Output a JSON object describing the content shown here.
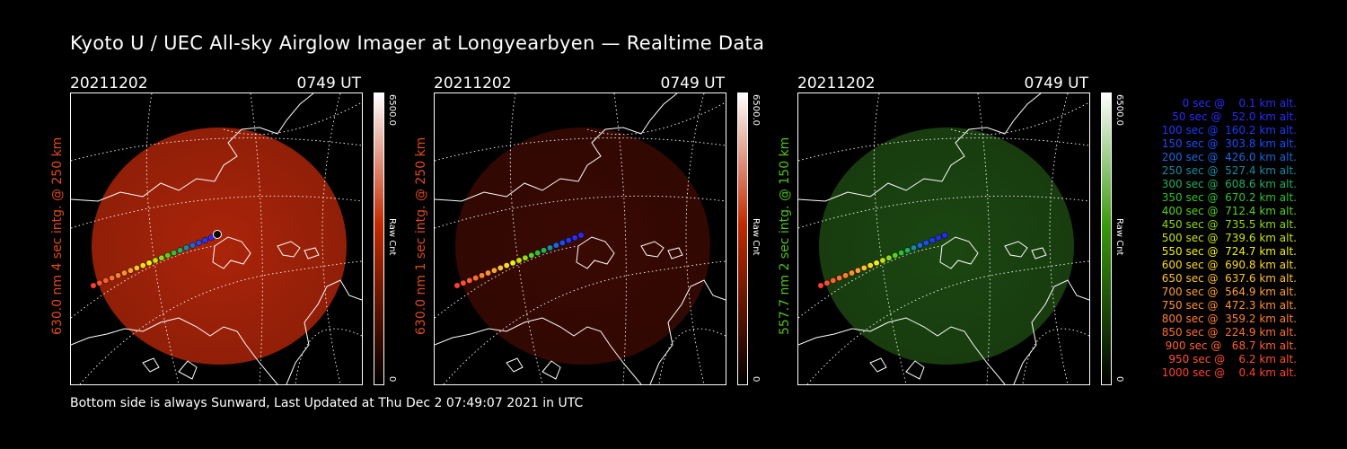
{
  "page": {
    "title": "Kyoto U / UEC All-sky Airglow Imager at Longyearbyen — Realtime Data",
    "footer": "Bottom side is always Sunward, Last Updated at Thu Dec  2 07:49:07 2021 in UTC"
  },
  "panels": [
    {
      "date": "20211202",
      "time": "0749 UT",
      "ylabel": "630.0 nm 4 sec intg. @ 250 km",
      "label_color": "#e04a1a",
      "glow": "#b3260a",
      "glow_alpha": 0.95,
      "cbar_top": "6500.0",
      "cbar_bottom": "0",
      "cbar_label": "Raw Cnt",
      "cbar_color": "#c22a00"
    },
    {
      "date": "20211202",
      "time": "0749 UT",
      "ylabel": "630.0 nm 1 sec intg. @ 250 km",
      "label_color": "#e04a1a",
      "glow": "#3d0a03",
      "glow_alpha": 0.95,
      "cbar_top": "6500.0",
      "cbar_bottom": "0",
      "cbar_label": "Raw Cnt",
      "cbar_color": "#c22a00"
    },
    {
      "date": "20211202",
      "time": "0749 UT",
      "ylabel": "557.7 nm 2 sec intg. @ 150 km",
      "label_color": "#4fc21a",
      "glow": "#1d4a12",
      "glow_alpha": 0.95,
      "cbar_top": "6500.0",
      "cbar_bottom": "0",
      "cbar_label": "Raw Cnt",
      "cbar_color": "#3a9a10"
    }
  ],
  "trajectory": {
    "entries": [
      {
        "text": "   0 sec @    0.1 km alt.",
        "color": "#2a2aff"
      },
      {
        "text": "  50 sec @   52.0 km alt.",
        "color": "#2a2aff"
      },
      {
        "text": " 100 sec @  160.2 km alt.",
        "color": "#1a3aff"
      },
      {
        "text": " 150 sec @  303.8 km alt.",
        "color": "#1a4cff"
      },
      {
        "text": " 200 sec @  426.0 km alt.",
        "color": "#1a66e0"
      },
      {
        "text": " 250 sec @  527.4 km alt.",
        "color": "#1a8aa0"
      },
      {
        "text": " 300 sec @  608.6 km alt.",
        "color": "#20b060"
      },
      {
        "text": " 350 sec @  670.2 km alt.",
        "color": "#30c030"
      },
      {
        "text": " 400 sec @  712.4 km alt.",
        "color": "#58d020"
      },
      {
        "text": " 450 sec @  735.5 km alt.",
        "color": "#90d818"
      },
      {
        "text": " 500 sec @  739.6 km alt.",
        "color": "#c8e010"
      },
      {
        "text": " 550 sec @  724.7 km alt.",
        "color": "#f0f010"
      },
      {
        "text": " 600 sec @  690.8 km alt.",
        "color": "#ffd820"
      },
      {
        "text": " 650 sec @  637.6 km alt.",
        "color": "#ffc030"
      },
      {
        "text": " 700 sec @  564.9 km alt.",
        "color": "#ffa030"
      },
      {
        "text": " 750 sec @  472.3 km alt.",
        "color": "#ff9030"
      },
      {
        "text": " 800 sec @  359.2 km alt.",
        "color": "#ff8030"
      },
      {
        "text": " 850 sec @  224.9 km alt.",
        "color": "#ff7030"
      },
      {
        "text": " 900 sec @   68.7 km alt.",
        "color": "#ff6030"
      },
      {
        "text": " 950 sec @    6.2 km alt.",
        "color": "#ff5030"
      },
      {
        "text": "1000 sec @    0.4 km alt.",
        "color": "#ff4030"
      }
    ]
  }
}
